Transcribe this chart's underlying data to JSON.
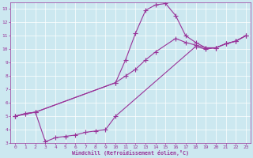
{
  "xlabel": "Windchill (Refroidissement éolien,°C)",
  "bg_color": "#cce8f0",
  "line_color": "#993399",
  "grid_color": "#aaddcc",
  "xlim": [
    -0.5,
    23.5
  ],
  "ylim": [
    3,
    13.5
  ],
  "xticks": [
    0,
    1,
    2,
    3,
    4,
    5,
    6,
    7,
    8,
    9,
    10,
    11,
    12,
    13,
    14,
    15,
    16,
    17,
    18,
    19,
    20,
    21,
    22,
    23
  ],
  "yticks": [
    3,
    4,
    5,
    6,
    7,
    8,
    9,
    10,
    11,
    12,
    13
  ],
  "line1_x": [
    0,
    1,
    2,
    10,
    11,
    12,
    13,
    14,
    15,
    16,
    17,
    18,
    19,
    20,
    21,
    22,
    23
  ],
  "line1_y": [
    5.0,
    5.2,
    5.3,
    7.5,
    9.2,
    11.2,
    12.9,
    13.3,
    13.4,
    12.5,
    11.0,
    10.5,
    10.1,
    10.1,
    10.4,
    10.6,
    11.0
  ],
  "line2_x": [
    0,
    1,
    2,
    3,
    4,
    5,
    6,
    7,
    8,
    9,
    10,
    18,
    19,
    20,
    21,
    22,
    23
  ],
  "line2_y": [
    5.0,
    5.2,
    5.3,
    3.1,
    3.4,
    3.5,
    3.6,
    3.8,
    3.9,
    4.0,
    5.0,
    10.2,
    10.0,
    10.1,
    10.4,
    10.6,
    11.0
  ],
  "line3_x": [
    0,
    2,
    10,
    11,
    12,
    13,
    14,
    16,
    17,
    18,
    19,
    20,
    21,
    22,
    23
  ],
  "line3_y": [
    5.0,
    5.3,
    7.5,
    8.0,
    8.5,
    9.2,
    9.8,
    10.8,
    10.5,
    10.3,
    10.1,
    10.1,
    10.4,
    10.6,
    11.0
  ]
}
